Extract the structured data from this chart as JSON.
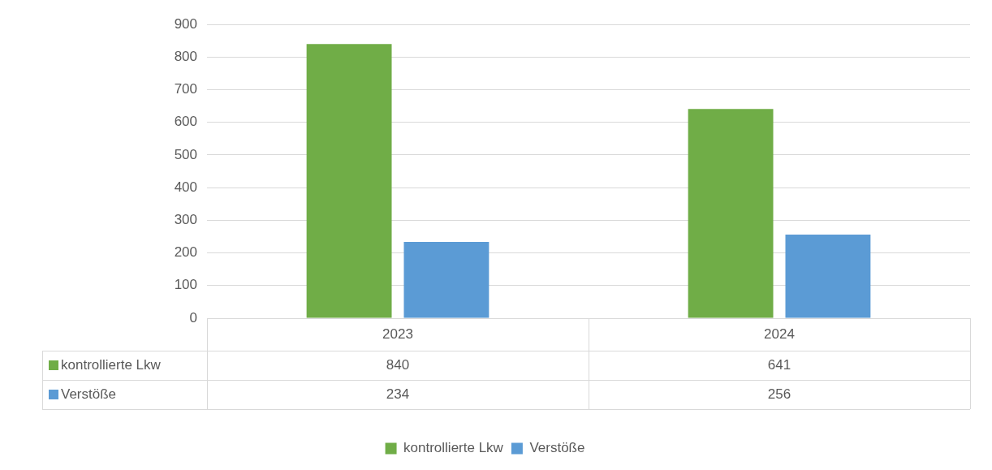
{
  "chart_data": {
    "type": "bar",
    "categories": [
      "2023",
      "2024"
    ],
    "series": [
      {
        "name": "kontrollierte Lkw",
        "color": "#70ad47",
        "values": [
          840,
          641
        ]
      },
      {
        "name": "Verstöße",
        "color": "#5b9bd5",
        "values": [
          234,
          256
        ]
      }
    ],
    "ylim": [
      0,
      900
    ],
    "yticks": [
      0,
      100,
      200,
      300,
      400,
      500,
      600,
      700,
      800,
      900
    ],
    "grid": "y",
    "legend": "bottom",
    "data_labels": true
  }
}
